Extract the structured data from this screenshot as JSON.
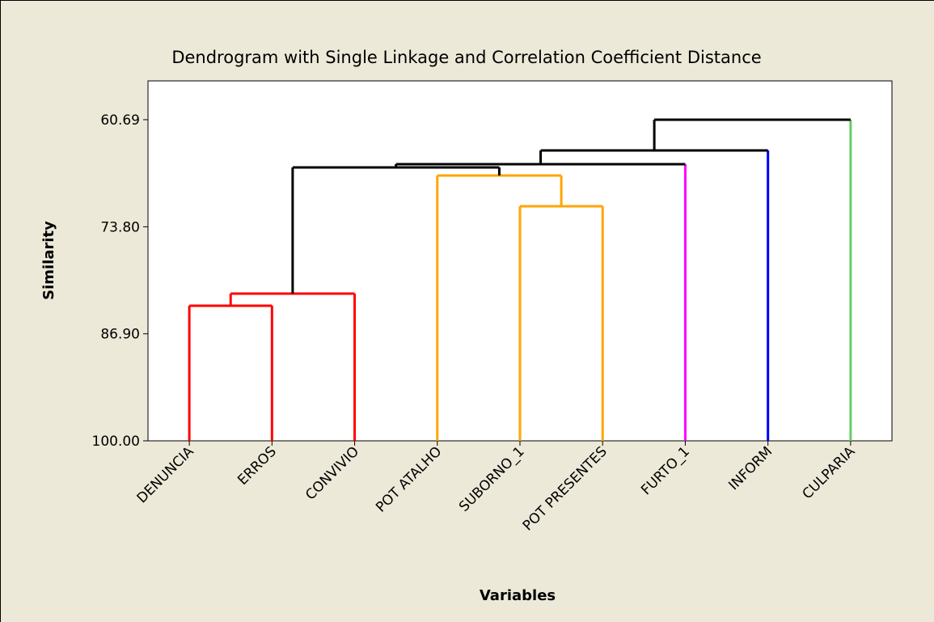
{
  "chart_data": {
    "type": "dendrogram",
    "title": "Dendrogram with Single Linkage and Correlation Coefficient Distance",
    "x_label": "Variables",
    "y_label": "Similarity",
    "leaves": [
      "DENUNCIA",
      "ERROS",
      "CONVIVIO",
      "POT ATALHO",
      "SUBORNO_1",
      "POT PRESENTES",
      "FURTO_1",
      "INFORM",
      "CULPARIA"
    ],
    "leaf_colors": [
      "#ff0000",
      "#ff0000",
      "#ff0000",
      "#ffa500",
      "#ffa500",
      "#ffa500",
      "#ff00ff",
      "#0000ff",
      "#66cc66"
    ],
    "merges": [
      {
        "left": 0,
        "right": 1,
        "height": 83.47,
        "color": "#ff0000"
      },
      {
        "left": 9,
        "right": 2,
        "height": 81.98,
        "color": "#ff0000"
      },
      {
        "left": 4,
        "right": 5,
        "height": 71.29,
        "color": "#ffa500"
      },
      {
        "left": 3,
        "right": 11,
        "height": 67.52,
        "color": "#ffa500"
      },
      {
        "left": 10,
        "right": 12,
        "height": 66.53,
        "color": "#000000"
      },
      {
        "left": 13,
        "right": 6,
        "height": 66.14,
        "color": "#000000"
      },
      {
        "left": 14,
        "right": 7,
        "height": 64.46,
        "color": "#000000"
      },
      {
        "left": 15,
        "right": 8,
        "height": 60.69,
        "color": "#000000"
      }
    ],
    "ylim": [
      100,
      55.94
    ],
    "yticks": [
      {
        "value": 100,
        "label": "100.00"
      },
      {
        "value": 86.9,
        "label": "86.90"
      },
      {
        "value": 73.8,
        "label": "73.80"
      },
      60.69
    ]
  }
}
